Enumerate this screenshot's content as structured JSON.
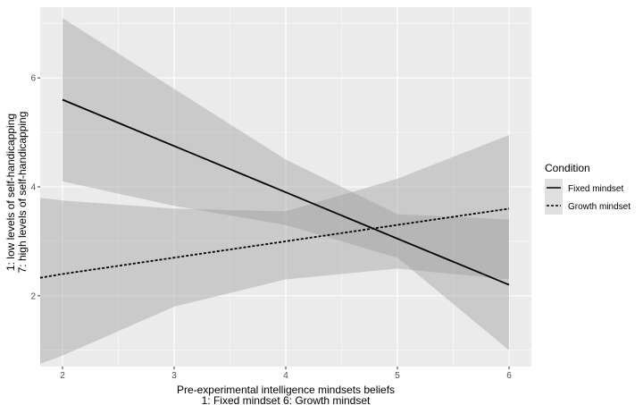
{
  "chart_data": {
    "type": "line",
    "xlabel": [
      "Pre-experimental intelligence mindsets beliefs",
      "1: Fixed mindset  6: Growth mindset"
    ],
    "ylabel": [
      "1: low levels of self-handicapping",
      "7: high levels of self-handicapping"
    ],
    "xlim": [
      1.8,
      6.2
    ],
    "ylim": [
      0.7,
      7.3
    ],
    "xticks": [
      2,
      3,
      4,
      5,
      6
    ],
    "yticks": [
      2,
      4,
      6
    ],
    "grid": true,
    "legend": {
      "title": "Condition",
      "position": "right"
    },
    "series": [
      {
        "name": "Fixed mindset",
        "line_style": "solid",
        "x": [
          2,
          3,
          4,
          5,
          6
        ],
        "y": [
          5.6,
          4.75,
          3.9,
          3.05,
          2.2
        ],
        "ci_lower": [
          4.1,
          3.65,
          3.3,
          2.7,
          1.0
        ],
        "ci_upper": [
          7.1,
          5.8,
          4.5,
          3.5,
          3.4
        ]
      },
      {
        "name": "Growth mindset",
        "line_style": "dashed",
        "x": [
          1.8,
          2,
          3,
          4,
          5,
          6
        ],
        "y": [
          2.33,
          2.4,
          2.7,
          3.0,
          3.3,
          3.6
        ],
        "ci_lower": [
          0.75,
          0.9,
          1.8,
          2.3,
          2.5,
          2.3
        ],
        "ci_upper": [
          3.8,
          3.75,
          3.6,
          3.55,
          4.15,
          4.95
        ]
      }
    ],
    "colors": {
      "panel": "#ebebeb",
      "grid": "#ffffff",
      "ribbon": "#999999",
      "line": "#000000"
    }
  }
}
